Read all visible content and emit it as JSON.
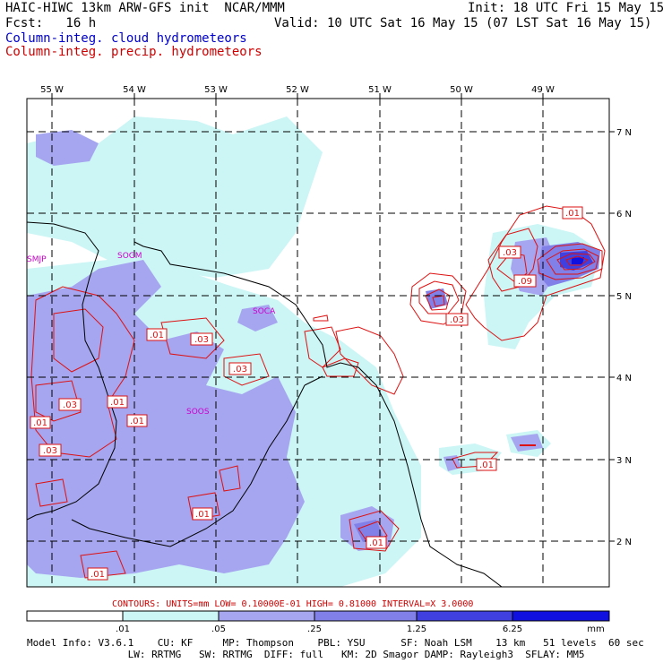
{
  "header": {
    "title": "HAIC-HIWC 13km ARW-GFS init  NCAR/MMM",
    "init": "Init: 18 UTC Fri 15 May 15",
    "fcst": "Fcst:   16 h",
    "valid": "Valid: 10 UTC Sat 16 May 15 (07 LST Sat 16 May 15)",
    "field1": "Column-integ. cloud hydrometeors",
    "field2": "Column-integ. precip. hydrometeors"
  },
  "map": {
    "lon_labels": [
      "55 W",
      "54 W",
      "53 W",
      "52 W",
      "51 W",
      "50 W",
      "49 W"
    ],
    "lat_labels": [
      "7 N",
      "6 N",
      "5 N",
      "4 N",
      "3 N",
      "2 N"
    ],
    "stations": [
      "SMJP",
      "SOGM",
      "SOCA",
      "SOOS"
    ],
    "contour_labels": [
      ".01",
      ".03",
      ".01",
      ".03",
      ".03",
      ".01",
      ".01",
      ".03",
      ".01",
      ".03",
      ".09",
      ".03",
      ".01",
      ".01",
      ".01",
      ".01"
    ],
    "colors": {
      "cloud_fill_1": "#ccf5f5",
      "cloud_fill_2": "#a6a6f0",
      "cloud_fill_3": "#8080e8",
      "cloud_fill_4": "#4040e0",
      "precip_contour": "#dd1111",
      "coast": "#000000",
      "station": "#cc00cc"
    }
  },
  "contours_info": "CONTOURS:  UNITS=mm  LOW= 0.10000E-01  HIGH= 0.81000      INTERVAL=X  3.0000",
  "colorbar": {
    "ticks": [
      ".01",
      ".05",
      ".25",
      "1.25",
      "6.25"
    ],
    "unit": "mm",
    "colors": [
      "#ffffff",
      "#ccf5f5",
      "#a6a6f0",
      "#8080e8",
      "#4040e0",
      "#1010e0"
    ]
  },
  "footer": {
    "line1": "Model Info: V3.6.1    CU: KF     MP: Thompson    PBL: YSU      SF: Noah LSM    13 km   51 levels  60 sec",
    "line2": "                 LW: RRTMG   SW: RRTMG  DIFF: full   KM: 2D Smagor DAMP: Rayleigh3  SFLAY: MM5"
  }
}
